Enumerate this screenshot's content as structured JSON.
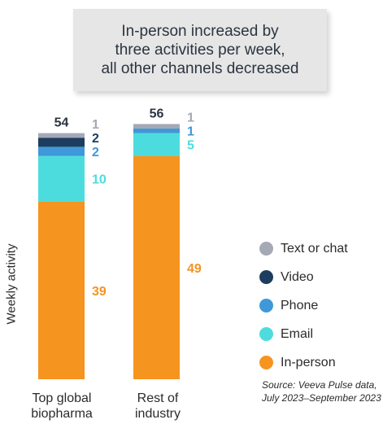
{
  "callout": {
    "text": "In-person increased by\nthree activities per week,\nall other channels decreased"
  },
  "chart_data": {
    "type": "bar",
    "stacked": true,
    "ylabel": "Weekly activity",
    "categories": [
      "Top global\nbiopharma",
      "Rest of\nindustry"
    ],
    "totals": [
      54,
      56
    ],
    "series": [
      {
        "name": "In-person",
        "values": [
          39,
          49
        ],
        "color": "#f5941f"
      },
      {
        "name": "Email",
        "values": [
          10,
          5
        ],
        "color": "#4ddcdd"
      },
      {
        "name": "Phone",
        "values": [
          2,
          1
        ],
        "color": "#3f98d8"
      },
      {
        "name": "Video",
        "values": [
          2,
          0
        ],
        "color": "#1d3d5e"
      },
      {
        "name": "Text or chat",
        "values": [
          1,
          1
        ],
        "color": "#a5a9b6"
      }
    ],
    "ylim": [
      0,
      56
    ],
    "legend_position": "right",
    "grid": false
  },
  "legend": [
    {
      "label": "Text or chat",
      "color": "#a5a9b6"
    },
    {
      "label": "Video",
      "color": "#1d3d5e"
    },
    {
      "label": "Phone",
      "color": "#3f98d8"
    },
    {
      "label": "Email",
      "color": "#4ddcdd"
    },
    {
      "label": "In-person",
      "color": "#f5941f"
    }
  ],
  "source": "Source: Veeva Pulse data,\nJuly 2023–September 2023"
}
